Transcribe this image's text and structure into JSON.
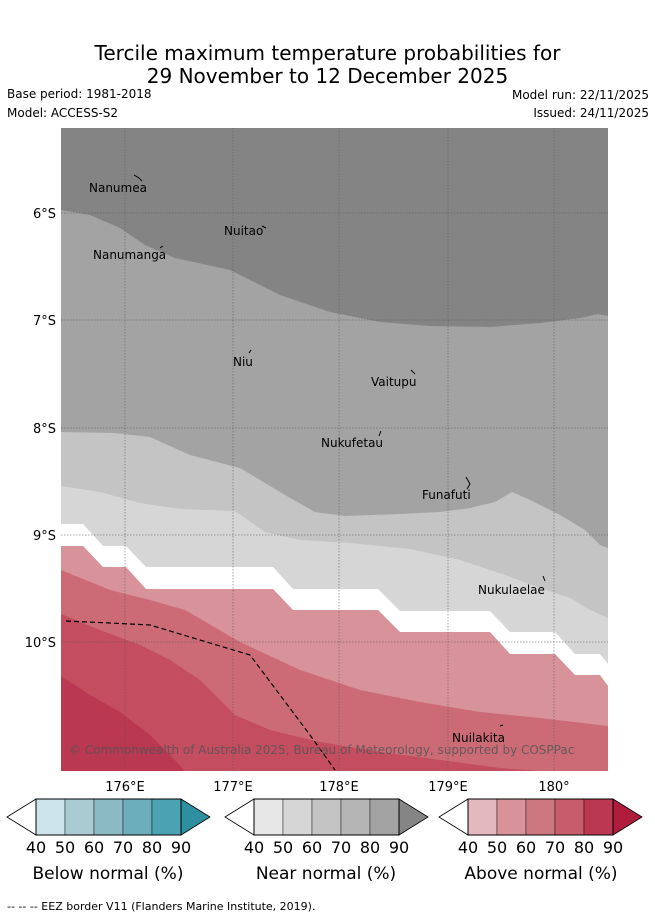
{
  "title_line1": "Tercile maximum temperature probabilities for",
  "title_line2": "29 November to 12 December 2025",
  "base_period": "Base period: 1981-2018",
  "model": "Model: ACCESS-S2",
  "model_run": "Model run: 22/11/2025",
  "issued": "Issued: 24/11/2025",
  "axes": {
    "lat_labels": [
      "6°S",
      "7°S",
      "8°S",
      "9°S",
      "10°S"
    ],
    "lon_labels": [
      "176°E",
      "177°E",
      "178°E",
      "179°E",
      "180°"
    ]
  },
  "places": [
    "Nanumea",
    "Nuitao",
    "Nanumanga",
    "Niu",
    "Vaitupu",
    "Nukufetau",
    "Funafuti",
    "Nukulaelae",
    "Nuilakita"
  ],
  "copyright": "© Commonwealth of Australia 2025, Bureau of Meteorology, supported by COSPPac",
  "colorbars": [
    {
      "label": "Below normal (%)",
      "ticks": [
        "40",
        "50",
        "60",
        "70",
        "80",
        "90"
      ],
      "colors": [
        "#ffffff",
        "#cce4ea",
        "#a9cbd1",
        "#8cbac4",
        "#6caebb",
        "#4ba3b1",
        "#2e8f9f"
      ]
    },
    {
      "label": "Near normal (%)",
      "ticks": [
        "40",
        "50",
        "60",
        "70",
        "80",
        "90"
      ],
      "colors": [
        "#ffffff",
        "#e6e6e6",
        "#d6d6d6",
        "#c4c4c4",
        "#b5b5b5",
        "#a3a3a3",
        "#858585"
      ]
    },
    {
      "label": "Above normal (%)",
      "ticks": [
        "40",
        "50",
        "60",
        "70",
        "80",
        "90"
      ],
      "colors": [
        "#ffffff",
        "#e3b8bf",
        "#d7929a",
        "#cc7680",
        "#c65c6c",
        "#ba3851",
        "#b01c3c"
      ]
    }
  ],
  "footer": "--  --  -- EEZ border V11 (Flanders Marine Institute, 2019)."
}
